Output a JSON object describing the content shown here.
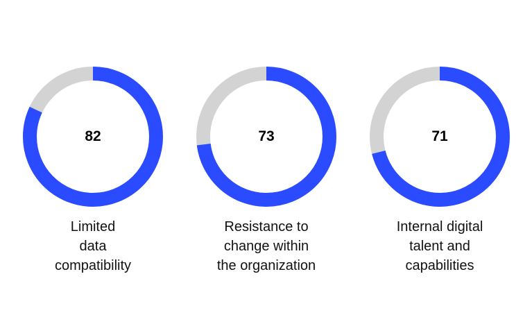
{
  "chart_data": {
    "type": "donut",
    "max": 100,
    "colors": {
      "value": "#2a4bff",
      "remainder": "#d3d3d3"
    },
    "items": [
      {
        "value": 82,
        "value_label": "82",
        "label_lines": [
          "Limited",
          "data",
          "compatibility"
        ]
      },
      {
        "value": 73,
        "value_label": "73",
        "label_lines": [
          "Resistance to",
          "change within",
          "the organization"
        ]
      },
      {
        "value": 71,
        "value_label": "71",
        "label_lines": [
          "Internal digital",
          "talent and",
          "capabilities"
        ]
      }
    ]
  }
}
